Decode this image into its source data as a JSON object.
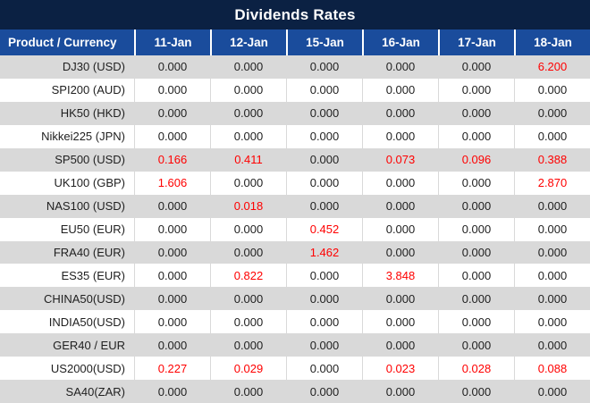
{
  "chart_data": {
    "type": "table",
    "title": "Dividends Rates",
    "columns": [
      "Product / Currency",
      "11-Jan",
      "12-Jan",
      "15-Jan",
      "16-Jan",
      "17-Jan",
      "18-Jan"
    ],
    "rows": [
      {
        "product": "DJ30 (USD)",
        "values": [
          "0.000",
          "0.000",
          "0.000",
          "0.000",
          "0.000",
          "6.200"
        ]
      },
      {
        "product": "SPI200 (AUD)",
        "values": [
          "0.000",
          "0.000",
          "0.000",
          "0.000",
          "0.000",
          "0.000"
        ]
      },
      {
        "product": "HK50 (HKD)",
        "values": [
          "0.000",
          "0.000",
          "0.000",
          "0.000",
          "0.000",
          "0.000"
        ]
      },
      {
        "product": "Nikkei225 (JPN)",
        "values": [
          "0.000",
          "0.000",
          "0.000",
          "0.000",
          "0.000",
          "0.000"
        ]
      },
      {
        "product": "SP500 (USD)",
        "values": [
          "0.166",
          "0.411",
          "0.000",
          "0.073",
          "0.096",
          "0.388"
        ]
      },
      {
        "product": "UK100 (GBP)",
        "values": [
          "1.606",
          "0.000",
          "0.000",
          "0.000",
          "0.000",
          "2.870"
        ]
      },
      {
        "product": "NAS100 (USD)",
        "values": [
          "0.000",
          "0.018",
          "0.000",
          "0.000",
          "0.000",
          "0.000"
        ]
      },
      {
        "product": "EU50 (EUR)",
        "values": [
          "0.000",
          "0.000",
          "0.452",
          "0.000",
          "0.000",
          "0.000"
        ]
      },
      {
        "product": "FRA40 (EUR)",
        "values": [
          "0.000",
          "0.000",
          "1.462",
          "0.000",
          "0.000",
          "0.000"
        ]
      },
      {
        "product": "ES35 (EUR)",
        "values": [
          "0.000",
          "0.822",
          "0.000",
          "3.848",
          "0.000",
          "0.000"
        ]
      },
      {
        "product": "CHINA50(USD)",
        "values": [
          "0.000",
          "0.000",
          "0.000",
          "0.000",
          "0.000",
          "0.000"
        ]
      },
      {
        "product": "INDIA50(USD)",
        "values": [
          "0.000",
          "0.000",
          "0.000",
          "0.000",
          "0.000",
          "0.000"
        ]
      },
      {
        "product": "GER40 / EUR",
        "values": [
          "0.000",
          "0.000",
          "0.000",
          "0.000",
          "0.000",
          "0.000"
        ]
      },
      {
        "product": "US2000(USD)",
        "values": [
          "0.227",
          "0.029",
          "0.000",
          "0.023",
          "0.028",
          "0.088"
        ]
      },
      {
        "product": "SA40(ZAR)",
        "values": [
          "0.000",
          "0.000",
          "0.000",
          "0.000",
          "0.000",
          "0.000"
        ]
      }
    ],
    "layout": {
      "highlight_rule": "nonzero values rendered in red",
      "row_striping": "odd rows gray, even rows white"
    }
  },
  "colors": {
    "title_bar_bg": "#0B2143",
    "header_row_bg": "#1A4C9C",
    "stripe_gray": "#D9D9D9",
    "stripe_white": "#FFFFFF",
    "value_text": "#1F1F1F",
    "highlight_red": "#FF0000"
  }
}
